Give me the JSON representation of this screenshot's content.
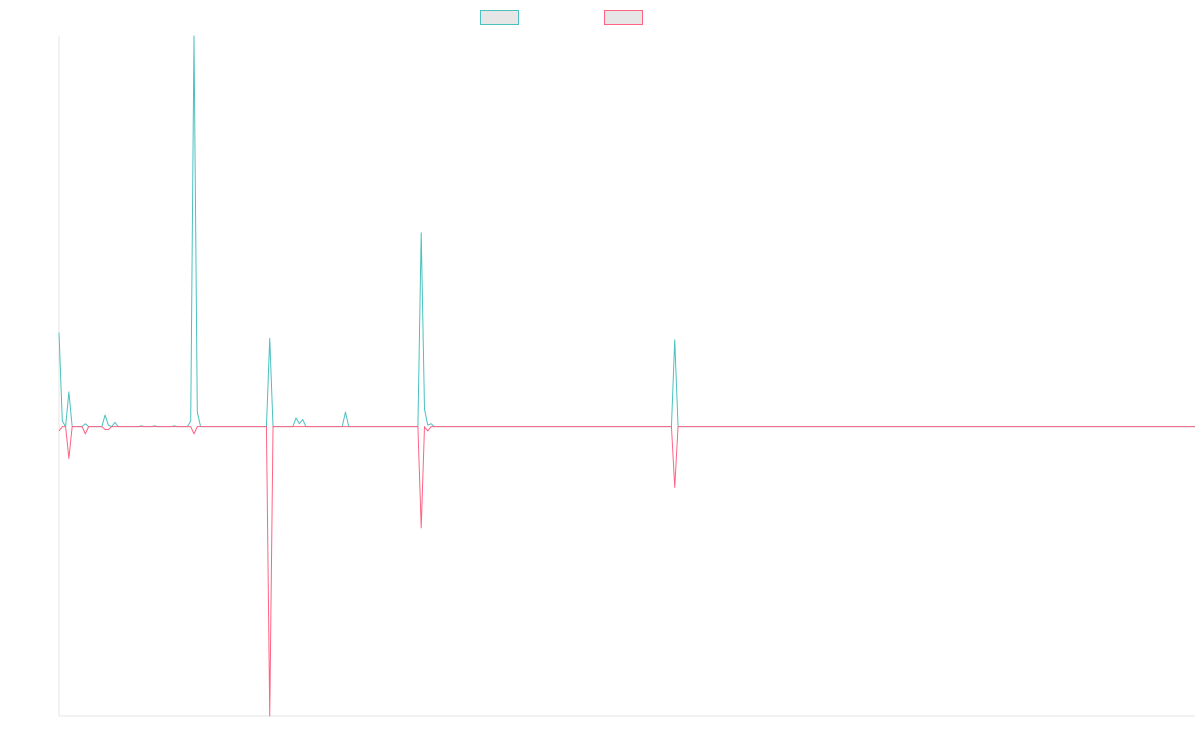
{
  "chart_data": {
    "type": "line",
    "title": "",
    "xlabel": "",
    "ylabel": "",
    "ylim": [
      -2000,
      2700
    ],
    "grid": false,
    "legend_placement": "top-center",
    "x_count": 346,
    "series": [
      {
        "color": "#4bc0c0",
        "points": [
          [
            0,
            650
          ],
          [
            1,
            40
          ],
          [
            3,
            240
          ],
          [
            4,
            0
          ],
          [
            8,
            20
          ],
          [
            9,
            0
          ],
          [
            14,
            80
          ],
          [
            15,
            10
          ],
          [
            16,
            0
          ],
          [
            17,
            30
          ],
          [
            18,
            0
          ],
          [
            25,
            5
          ],
          [
            29,
            5
          ],
          [
            35,
            5
          ],
          [
            40,
            40
          ],
          [
            41,
            2700
          ],
          [
            42,
            100
          ],
          [
            43,
            0
          ],
          [
            64,
            610
          ],
          [
            65,
            0
          ],
          [
            72,
            60
          ],
          [
            73,
            20
          ],
          [
            74,
            50
          ],
          [
            75,
            0
          ],
          [
            77,
            0
          ],
          [
            87,
            100
          ],
          [
            88,
            0
          ],
          [
            110,
            1340
          ],
          [
            111,
            120
          ],
          [
            112,
            10
          ],
          [
            113,
            20
          ],
          [
            114,
            0
          ],
          [
            187,
            600
          ],
          [
            188,
            0
          ],
          [
            345,
            0
          ]
        ]
      },
      {
        "color": "#ff6384",
        "points": [
          [
            0,
            -30
          ],
          [
            1,
            0
          ],
          [
            3,
            -220
          ],
          [
            4,
            0
          ],
          [
            8,
            -50
          ],
          [
            9,
            0
          ],
          [
            14,
            -20
          ],
          [
            15,
            -20
          ],
          [
            16,
            0
          ],
          [
            40,
            0
          ],
          [
            41,
            -50
          ],
          [
            42,
            0
          ],
          [
            64,
            -2000
          ],
          [
            65,
            0
          ],
          [
            110,
            -700
          ],
          [
            111,
            0
          ],
          [
            112,
            -30
          ],
          [
            113,
            0
          ],
          [
            187,
            -420
          ],
          [
            188,
            0
          ],
          [
            345,
            0
          ]
        ]
      }
    ]
  }
}
